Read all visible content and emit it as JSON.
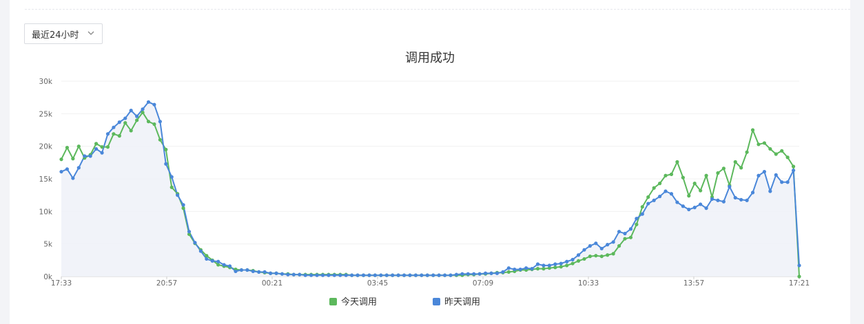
{
  "range_select": {
    "value": "最近24小时",
    "icon": "chevron-down-icon"
  },
  "chart_data": {
    "type": "line",
    "title": "调用成功",
    "xlabel": "",
    "ylabel": "",
    "ylim": [
      0,
      30000
    ],
    "y_ticks": [
      "0k",
      "5k",
      "10k",
      "15k",
      "20k",
      "25k",
      "30k"
    ],
    "x_ticks": [
      "17:33",
      "20:57",
      "00:21",
      "03:45",
      "07:09",
      "10:33",
      "13:57",
      "17:21"
    ],
    "grid": true,
    "legend_position": "bottom",
    "series": [
      {
        "name": "今天调用",
        "color": "#5cb85c",
        "values": [
          18000,
          19800,
          18100,
          20000,
          18200,
          18700,
          20400,
          19900,
          19900,
          21900,
          21600,
          23600,
          22400,
          24000,
          25200,
          23800,
          23400,
          21000,
          19500,
          13700,
          12700,
          10500,
          6500,
          5100,
          4100,
          3200,
          2500,
          1800,
          1600,
          1400,
          1100,
          1000,
          1000,
          900,
          700,
          600,
          500,
          500,
          400,
          400,
          300,
          300,
          300,
          300,
          300,
          300,
          300,
          300,
          300,
          300,
          200,
          200,
          200,
          200,
          200,
          200,
          200,
          200,
          200,
          200,
          200,
          200,
          200,
          200,
          200,
          200,
          200,
          200,
          200,
          200,
          300,
          300,
          400,
          400,
          500,
          600,
          600,
          700,
          800,
          1000,
          1000,
          1100,
          1200,
          1200,
          1300,
          1400,
          1500,
          1700,
          2000,
          2400,
          2700,
          3100,
          3200,
          3100,
          3300,
          3500,
          4700,
          5800,
          6000,
          8000,
          10700,
          12200,
          13600,
          14300,
          15500,
          15700,
          17600,
          15200,
          12400,
          14300,
          13200,
          15500,
          12200,
          15900,
          16600,
          14000,
          17600,
          16700,
          19100,
          22500,
          20300,
          20500,
          19600,
          18800,
          19300,
          18300,
          16900,
          0
        ]
      },
      {
        "name": "昨天调用",
        "color": "#4a87d9",
        "values": [
          16100,
          16500,
          15100,
          16700,
          18500,
          18500,
          19600,
          19000,
          21900,
          22900,
          23700,
          24300,
          25500,
          24600,
          25700,
          26800,
          26400,
          23800,
          17300,
          15300,
          12500,
          11000,
          6900,
          5200,
          3900,
          2700,
          2400,
          2300,
          1800,
          1600,
          800,
          1000,
          1000,
          800,
          700,
          700,
          500,
          500,
          400,
          300,
          300,
          300,
          200,
          200,
          200,
          200,
          200,
          200,
          200,
          200,
          200,
          200,
          200,
          200,
          200,
          200,
          200,
          200,
          200,
          200,
          200,
          200,
          200,
          200,
          200,
          200,
          200,
          200,
          300,
          400,
          400,
          400,
          400,
          500,
          500,
          500,
          700,
          1300,
          1100,
          1100,
          1300,
          1200,
          1900,
          1700,
          1700,
          1900,
          2000,
          2300,
          2600,
          3300,
          4100,
          4700,
          5100,
          4300,
          4900,
          5300,
          6900,
          6600,
          7300,
          8900,
          9600,
          11200,
          11700,
          12300,
          13100,
          12700,
          11400,
          10800,
          10300,
          10600,
          11100,
          10500,
          11900,
          11700,
          11500,
          13800,
          12100,
          11800,
          11700,
          12900,
          15500,
          16100,
          13100,
          15600,
          14500,
          14500,
          16300,
          1700
        ]
      }
    ]
  }
}
